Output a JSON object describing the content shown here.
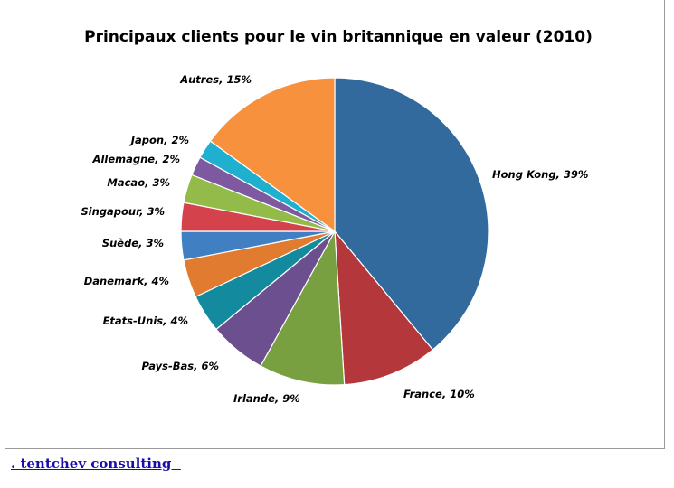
{
  "chart_data": {
    "type": "pie",
    "title": "Principaux clients pour le vin britannique en valeur (2010)",
    "slices": [
      {
        "label": "Hong Kong, 39%",
        "value": 39,
        "color": "#336a9e"
      },
      {
        "label": "France, 10%",
        "value": 10,
        "color": "#b3373b"
      },
      {
        "label": "Irlande, 9%",
        "value": 9,
        "color": "#78a040"
      },
      {
        "label": "Pays-Bas, 6%",
        "value": 6,
        "color": "#6c4f8e"
      },
      {
        "label": "Etats-Unis, 4%",
        "value": 4,
        "color": "#138a9e"
      },
      {
        "label": "Danemark, 4%",
        "value": 4,
        "color": "#e07b30"
      },
      {
        "label": "Suède, 3%",
        "value": 3,
        "color": "#3f7fc2"
      },
      {
        "label": "Singapour, 3%",
        "value": 3,
        "color": "#d4434b"
      },
      {
        "label": "Macao, 3%",
        "value": 3,
        "color": "#92bb4a"
      },
      {
        "label": "Allemagne, 2%",
        "value": 2,
        "color": "#7d5a9f"
      },
      {
        "label": "Japon, 2%",
        "value": 2,
        "color": "#1fb0d0"
      },
      {
        "label": "Autres, 15%",
        "value": 15,
        "color": "#f7913d"
      }
    ]
  },
  "footer": {
    "link_text": ". tentchev consulting  "
  }
}
